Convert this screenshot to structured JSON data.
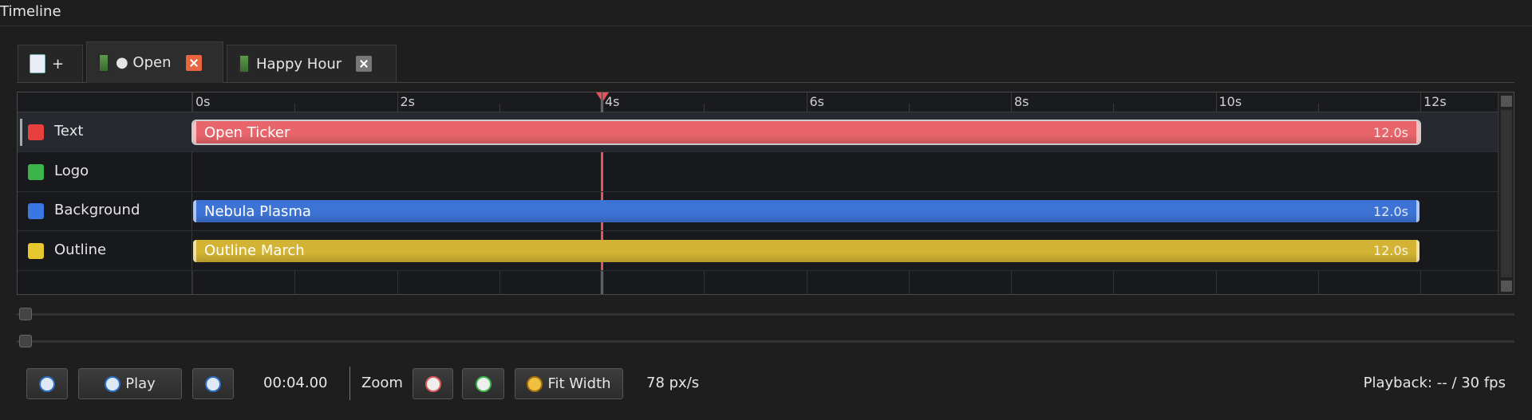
{
  "panel_title": "Timeline",
  "tabs": [
    {
      "label": "+"
    },
    {
      "label": "● Open"
    },
    {
      "label": "Happy Hour"
    }
  ],
  "ruler": [
    "0s",
    "2s",
    "4s",
    "6s",
    "8s",
    "10s",
    "12s"
  ],
  "tracks": [
    {
      "name": "Text",
      "color": "#e8403f",
      "clip": {
        "name": "Open Ticker",
        "duration": "12.0s",
        "color": "#e8656b"
      }
    },
    {
      "name": "Logo",
      "color": "#3bb54a"
    },
    {
      "name": "Background",
      "color": "#3b77e2",
      "clip": {
        "name": "Nebula Plasma",
        "duration": "12.0s",
        "color": "#3e73d6"
      }
    },
    {
      "name": "Outline",
      "color": "#e6c72e",
      "clip": {
        "name": "Outline March",
        "duration": "12.0s",
        "color": "#d2b333"
      }
    }
  ],
  "transport": {
    "play": "Play",
    "timecode": "00:04.00"
  },
  "zoom": {
    "label": "Zoom",
    "fit": "Fit Width",
    "scale": "78 px/s"
  },
  "playback": "Playback: -- / 30 fps"
}
